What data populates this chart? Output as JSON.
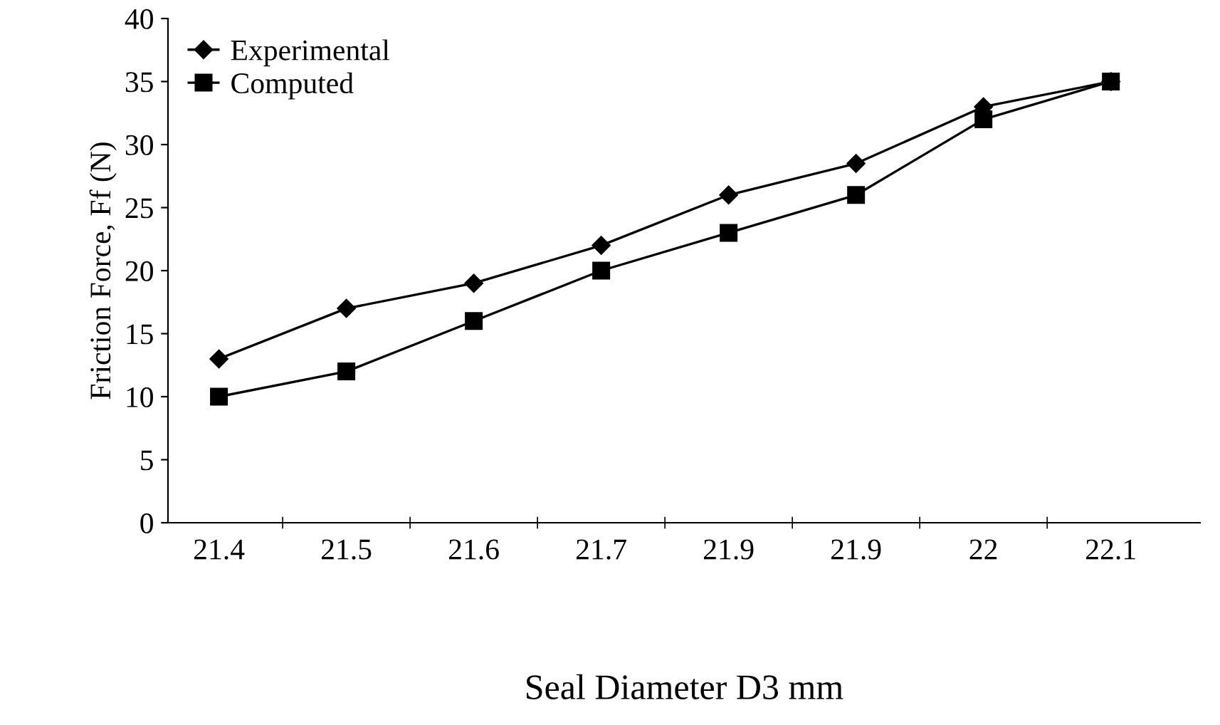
{
  "chart_data": {
    "type": "line",
    "xlabel": "Seal Diameter D3 mm",
    "ylabel": "Friction Force, Ff (N)",
    "categories": [
      "21.4",
      "21.5",
      "21.6",
      "21.7",
      "21.9",
      "21.9",
      "22",
      "22.1"
    ],
    "series": [
      {
        "name": "Experimental",
        "color": "#000000",
        "marker": "diamond",
        "values": [
          13,
          17,
          19,
          22,
          26,
          28.5,
          33,
          35
        ]
      },
      {
        "name": "Computed",
        "color": "#000000",
        "marker": "square",
        "values": [
          10,
          12,
          16,
          20,
          23,
          26,
          32,
          35
        ]
      }
    ],
    "ylim": [
      0,
      40
    ],
    "yticks": [
      0,
      5,
      10,
      15,
      20,
      25,
      30,
      35,
      40
    ],
    "grid": false,
    "legend": "top left",
    "line_style": "solid"
  }
}
